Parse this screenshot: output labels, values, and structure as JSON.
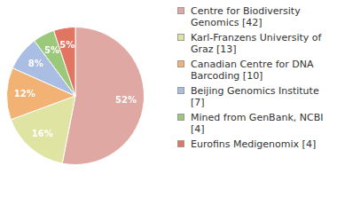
{
  "chart_data": {
    "type": "pie",
    "categories": [
      "Centre for Biodiversity Genomics [42]",
      "Karl-Franzens University of Graz [13]",
      "Canadian Centre for DNA Barcoding [10]",
      "Beijing Genomics Institute [7]",
      "Mined from GenBank, NCBI [4]",
      "Eurofins Medigenomix [4]"
    ],
    "values": [
      52,
      16,
      12,
      8,
      5,
      5
    ],
    "value_labels": [
      "52%",
      "16%",
      "12%",
      "8%",
      "5%",
      "5%"
    ],
    "colors": [
      "#e0a8a2",
      "#dfe4a2",
      "#f1b274",
      "#a9bee2",
      "#9bc97b",
      "#e27462"
    ],
    "data_labels": true,
    "legend": "right"
  }
}
